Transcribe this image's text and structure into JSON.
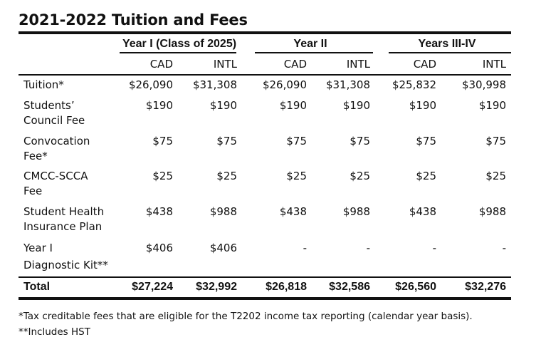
{
  "title": "2021-2022 Tuition and Fees",
  "groups": [
    "Year I (Class of 2025)",
    "Year II",
    "Years III-IV"
  ],
  "subheaders": [
    "CAD",
    "INTL",
    "CAD",
    "INTL",
    "CAD",
    "INTL"
  ],
  "rows": [
    {
      "label": [
        "Tuition*"
      ],
      "values": [
        "$26,090",
        "$31,308",
        "$26,090",
        "$31,308",
        "$25,832",
        "$30,998"
      ]
    },
    {
      "label": [
        "Students’",
        "Council Fee"
      ],
      "values": [
        "$190",
        "$190",
        "$190",
        "$190",
        "$190",
        "$190"
      ]
    },
    {
      "label": [
        "Convocation",
        "Fee*"
      ],
      "values": [
        "$75",
        "$75",
        "$75",
        "$75",
        "$75",
        "$75"
      ]
    },
    {
      "label": [
        "CMCC-SCCA",
        "Fee"
      ],
      "values": [
        "$25",
        "$25",
        "$25",
        "$25",
        "$25",
        "$25"
      ]
    },
    {
      "label": [
        "Student Health",
        "Insurance Plan"
      ],
      "values": [
        "$438",
        "$988",
        "$438",
        "$988",
        "$438",
        "$988"
      ]
    },
    {
      "label": [
        "Year I",
        "Diagnostic Kit**"
      ],
      "values": [
        "$406",
        "$406",
        "-",
        "-",
        "-",
        "-"
      ]
    }
  ],
  "total": {
    "label": "Total",
    "values": [
      "$27,224",
      "$32,992",
      "$26,818",
      "$32,586",
      "$26,560",
      "$32,276"
    ]
  },
  "footnotes": [
    "*Tax creditable fees that are eligible for the T2202 income tax reporting (calendar year basis).",
    "**Includes HST"
  ]
}
